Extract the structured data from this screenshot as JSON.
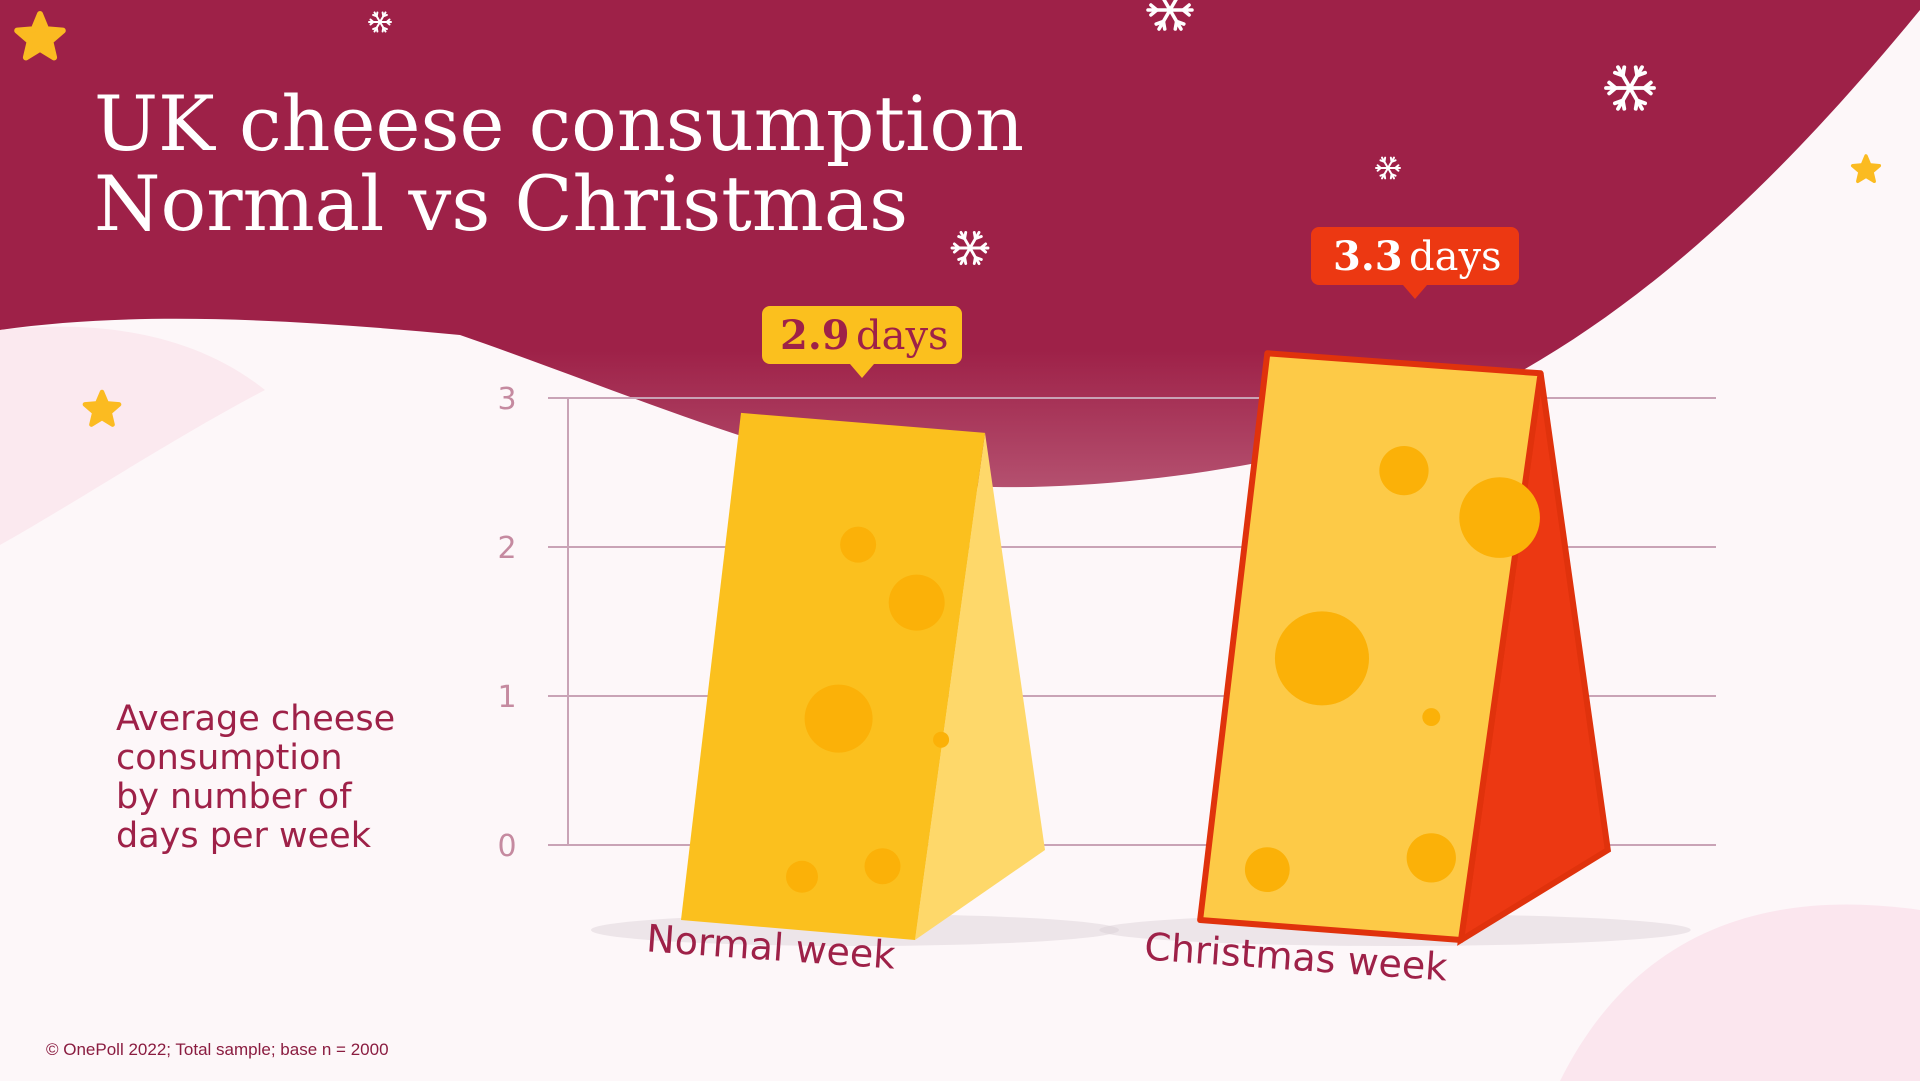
{
  "title": {
    "line1": "UK cheese consumption",
    "line2": "Normal vs Christmas"
  },
  "ylabel": {
    "line1": "Average cheese",
    "line2": "consumption",
    "line3": "by number of",
    "line4": "days per week"
  },
  "source": "© OnePoll 2022; Total sample; base n = 2000",
  "colors": {
    "background_maroon": "#9e2148",
    "cheese_yellow": "#fdca47",
    "cheese_hole": "#fbb108",
    "normal_callout": "#fbc01e",
    "christmas_callout": "#ec3812",
    "christmas_side": "#ec3812",
    "star": "#fbbb21"
  },
  "icons": [
    "snowflake-icon",
    "star-icon"
  ],
  "chart_data": {
    "type": "bar",
    "categories": [
      "Normal week",
      "Christmas week"
    ],
    "values": [
      2.9,
      3.3
    ],
    "value_labels": [
      "2.9",
      "3.3"
    ],
    "unit_label": "days",
    "yticks": [
      "0",
      "1",
      "2",
      "3"
    ],
    "ylim": [
      0,
      3
    ],
    "grid": true,
    "title": "UK cheese consumption Normal vs Christmas",
    "ylabel": "Average cheese consumption by number of days per week",
    "xlabel": ""
  }
}
